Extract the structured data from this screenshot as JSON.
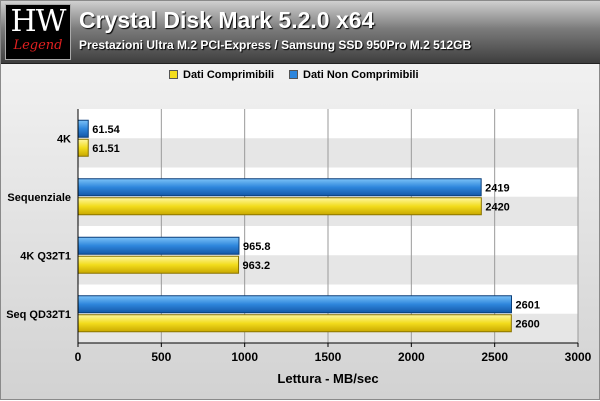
{
  "header": {
    "logo_top": "HW",
    "logo_bottom": "Legend",
    "title": "Crystal Disk Mark 5.2.0 x64",
    "subtitle": "Prestazioni Ultra M.2 PCI-Express / Samsung SSD 950Pro M.2 512GB"
  },
  "colors": {
    "compressible": "#f2dc1c",
    "non_compressible": "#2e86dc",
    "plot_band": "#e6e6e6"
  },
  "chart_data": {
    "type": "bar",
    "orientation": "horizontal",
    "categories": [
      "4K",
      "Sequenziale",
      "4K Q32T1",
      "Seq QD32T1"
    ],
    "series": [
      {
        "name": "Dati Non Comprimibili",
        "values": [
          61.54,
          2419,
          965.8,
          2601
        ],
        "labels": [
          "61.54",
          "2419",
          "965.8",
          "2601"
        ]
      },
      {
        "name": "Dati Comprimibili",
        "values": [
          61.51,
          2420,
          963.2,
          2600
        ],
        "labels": [
          "61.51",
          "2420",
          "963.2",
          "2600"
        ]
      }
    ],
    "legend_order": [
      "Dati Comprimibili",
      "Dati Non Comprimibili"
    ],
    "legend_position": "top",
    "xlabel": "Lettura - MB/sec",
    "xlim": [
      0,
      3000
    ],
    "xticks": [
      "0",
      "500",
      "1000",
      "1500",
      "2000",
      "2500",
      "3000"
    ],
    "grid": true
  }
}
